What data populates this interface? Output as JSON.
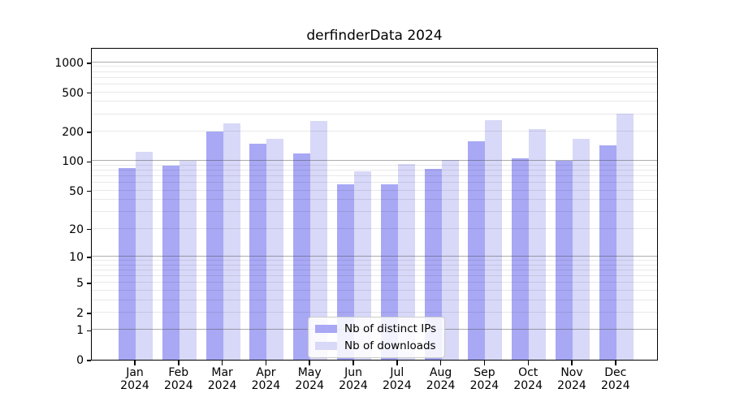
{
  "title": "derfinderData 2024",
  "chart_data": {
    "type": "bar",
    "title": "derfinderData 2024",
    "x_categories": [
      "Jan",
      "Feb",
      "Mar",
      "Apr",
      "May",
      "Jun",
      "Jul",
      "Aug",
      "Sep",
      "Oct",
      "Nov",
      "Dec"
    ],
    "x_year": "2024",
    "series": [
      {
        "name": "Nb of distinct IPs",
        "color": "#a8a8f5",
        "values": [
          85,
          90,
          200,
          150,
          119,
          58,
          58,
          83,
          160,
          106,
          100,
          144
        ]
      },
      {
        "name": "Nb of downloads",
        "color": "#d8d8f8",
        "values": [
          124,
          100,
          241,
          168,
          257,
          79,
          94,
          102,
          262,
          210,
          167,
          305
        ]
      }
    ],
    "y_scale": "log1p",
    "y_ticks": [
      0,
      1,
      2,
      5,
      10,
      20,
      50,
      100,
      200,
      500,
      1000
    ],
    "major_gridlines": [
      1,
      10,
      100,
      1000
    ],
    "minor_gridlines": [
      2,
      3,
      4,
      5,
      6,
      7,
      8,
      9,
      20,
      30,
      40,
      50,
      60,
      70,
      80,
      90,
      200,
      300,
      400,
      500,
      600,
      700,
      800,
      900
    ],
    "ylim": [
      0,
      1400
    ],
    "grid": true,
    "legend_position": "lower center"
  },
  "colors": {
    "grid_major": "#b3b3b3",
    "grid_minor": "#ebebeb",
    "spine": "#000000",
    "background": "#ffffff"
  }
}
